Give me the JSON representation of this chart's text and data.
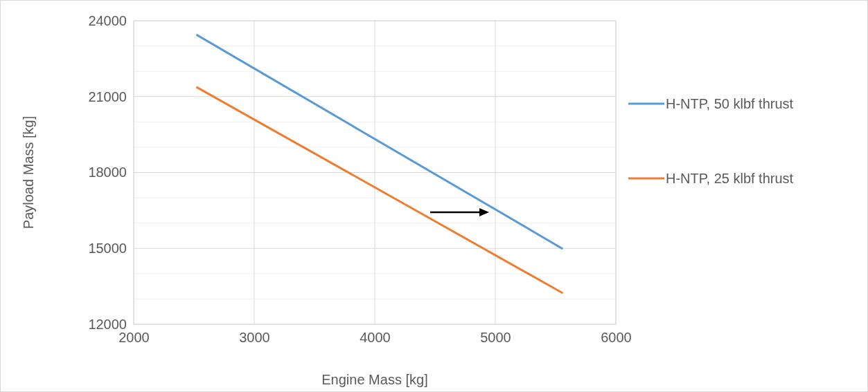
{
  "chart_data": {
    "type": "line",
    "xlabel": "Engine Mass [kg]",
    "ylabel": "Payload Mass [kg]",
    "xlim": [
      2000,
      6000
    ],
    "xticks": [
      2000,
      3000,
      4000,
      5000,
      6000
    ],
    "ylim": [
      12000,
      24000
    ],
    "yticks": [
      12000,
      {
        "value": 13000,
        "label": null
      },
      {
        "value": 14000,
        "label": null
      },
      15000,
      {
        "value": 16000,
        "label": null
      },
      {
        "value": 17000,
        "label": null
      },
      18000,
      {
        "value": 19000,
        "label": null
      },
      {
        "value": 20000,
        "label": null
      },
      21000,
      {
        "value": 22000,
        "label": null
      },
      {
        "value": 23000,
        "label": null
      },
      24000
    ],
    "x": [
      2520,
      5560
    ],
    "grid": true,
    "legend": "right",
    "marker": "none",
    "line_style": "solid",
    "series": [
      {
        "name": "H-NTP, 50 klbf thrust",
        "color": "#5b9bd5",
        "values": [
          23450,
          14980
        ]
      },
      {
        "name": "H-NTP, 25 klbf thrust",
        "color": "#ed7d31",
        "values": [
          21380,
          13230
        ]
      }
    ]
  }
}
